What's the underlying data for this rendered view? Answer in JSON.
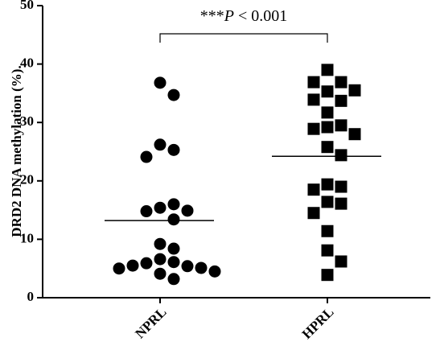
{
  "chart_data": {
    "type": "strip",
    "y_label": "DRD2 DNA methylation (%).",
    "annotation": [
      "***",
      "P",
      " < 0.001"
    ],
    "categories": [
      "NPRL",
      "HPRL"
    ],
    "groups": [
      {
        "marker": "circle",
        "color": "#000000",
        "mean": 13.2,
        "values": [
          36.8,
          34.7,
          26.2,
          25.3,
          24.1,
          15.4,
          16.0,
          14.8,
          14.9,
          13.4,
          9.2,
          8.4,
          6.6,
          6.1,
          5.9,
          5.4,
          5.5,
          5.1,
          5.0,
          4.5,
          4.1,
          3.2
        ]
      },
      {
        "marker": "square",
        "color": "#000000",
        "mean": 24.2,
        "values": [
          39.0,
          36.9,
          36.9,
          35.3,
          35.5,
          33.7,
          33.9,
          31.7,
          29.5,
          29.2,
          28.9,
          28.0,
          25.8,
          24.4,
          19.4,
          19.0,
          18.5,
          16.4,
          16.1,
          14.5,
          11.4,
          8.1,
          6.2,
          3.9
        ]
      }
    ],
    "ylim": [
      0,
      50
    ],
    "yticks": [
      0,
      10,
      20,
      30,
      40,
      50
    ]
  }
}
